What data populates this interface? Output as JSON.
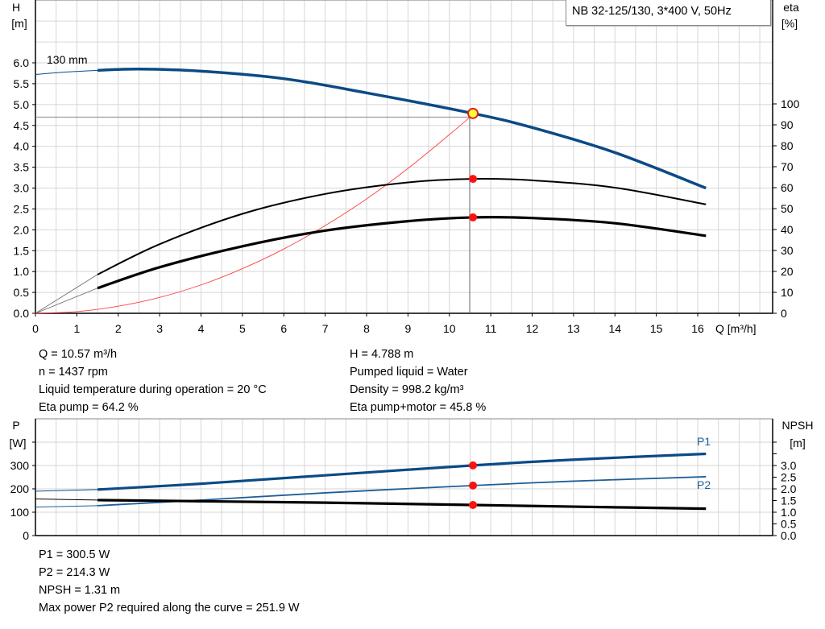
{
  "chart_data": [
    {
      "type": "line",
      "title": "NB 32-125/130, 3*400 V, 50Hz",
      "xlabel": "Q [m³/h]",
      "x_ticks": [
        "0",
        "1",
        "2",
        "3",
        "4",
        "5",
        "6",
        "7",
        "8",
        "9",
        "10",
        "11",
        "12",
        "13",
        "14",
        "15",
        "16"
      ],
      "y_left": {
        "label": "H",
        "unit": "[m]",
        "ticks": [
          "0.0",
          "0.5",
          "1.0",
          "1.5",
          "2.0",
          "2.5",
          "3.0",
          "3.5",
          "4.0",
          "4.5",
          "5.0",
          "5.5",
          "6.0"
        ],
        "range": [
          0,
          7.5
        ]
      },
      "y_right": {
        "label": "eta",
        "unit": "[%]",
        "ticks": [
          "0",
          "10",
          "20",
          "30",
          "40",
          "50",
          "60",
          "70",
          "80",
          "90",
          "100"
        ],
        "range": [
          0,
          150
        ]
      },
      "xlim": [
        0,
        17.8
      ],
      "grid": true,
      "min_flow_q": 1.5,
      "operating_point": {
        "q": 10.57,
        "h": 4.788,
        "eta_pump": 64.2,
        "eta_total": 45.8
      },
      "reference_line_h": 4.7,
      "series": [
        {
          "name": "130 mm",
          "axis": "left",
          "color": "#0b4a85",
          "x": [
            0,
            0.75,
            1.5,
            2.5,
            4,
            6,
            8,
            10.57,
            12,
            14,
            16.2
          ],
          "y": [
            5.72,
            5.78,
            5.82,
            5.85,
            5.8,
            5.62,
            5.28,
            4.788,
            4.45,
            3.85,
            3.0
          ]
        },
        {
          "axis": "right",
          "color": "#000000",
          "x": [
            1.5,
            3,
            5,
            7,
            9,
            10.57,
            12,
            14,
            16.2
          ],
          "y": [
            18.5,
            33,
            47.5,
            57,
            62.5,
            64.2,
            63.5,
            60,
            52
          ]
        },
        {
          "axis": "right",
          "color": "#000000",
          "x": [
            1.5,
            3,
            5,
            7,
            9,
            10.57,
            12,
            14,
            16.2
          ],
          "y": [
            12,
            22,
            32,
            39.5,
            44,
            45.8,
            45.5,
            43,
            37
          ]
        },
        {
          "axis": "left",
          "color": "#ff4040",
          "x": [
            0,
            1,
            2,
            3,
            4,
            5,
            6,
            7,
            8,
            9,
            10,
            10.5
          ],
          "y": [
            0,
            0.04,
            0.17,
            0.38,
            0.68,
            1.07,
            1.54,
            2.1,
            2.74,
            3.47,
            4.28,
            4.7
          ]
        }
      ]
    },
    {
      "type": "line",
      "x_ticks_shared": true,
      "y_left": {
        "label": "P",
        "unit": "[W]",
        "ticks": [
          "0",
          "100",
          "200",
          "300"
        ],
        "range": [
          0,
          500
        ]
      },
      "y_right": {
        "label": "NPSH",
        "unit": "[m]",
        "ticks": [
          "0.0",
          "0.5",
          "1.0",
          "1.5",
          "2.0",
          "2.5",
          "3.0"
        ],
        "range": [
          0,
          5
        ]
      },
      "grid": true,
      "operating_point": {
        "q": 10.57,
        "p1": 300.5,
        "p2": 214.3,
        "npsh": 1.31
      },
      "series": [
        {
          "name": "P1",
          "axis": "left",
          "color": "#0b4a85",
          "x": [
            0,
            1.5,
            4,
            7,
            10.57,
            13,
            16.2
          ],
          "y": [
            190,
            197,
            222,
            258,
            300.5,
            325,
            350
          ]
        },
        {
          "name": "P2",
          "axis": "left",
          "color": "#1f5d99",
          "x": [
            0,
            1.5,
            4,
            7,
            10.57,
            13,
            16.2
          ],
          "y": [
            122,
            128,
            152,
            183,
            214.3,
            233,
            251.9
          ]
        },
        {
          "axis": "right",
          "color": "#000000",
          "x": [
            0,
            1.5,
            4,
            7,
            10.57,
            13,
            16.2
          ],
          "y": [
            1.57,
            1.52,
            1.47,
            1.41,
            1.31,
            1.24,
            1.15
          ]
        }
      ]
    }
  ],
  "info_top": {
    "left": [
      "Q = 10.57 m³/h",
      "n = 1437 rpm",
      "Liquid temperature during operation = 20 °C",
      "Eta pump = 64.2 %"
    ],
    "right": [
      "H = 4.788 m",
      "Pumped liquid = Water",
      "Density = 998.2 kg/m³",
      "Eta pump+motor = 45.8 %"
    ]
  },
  "info_bottom": [
    "P1 = 300.5 W",
    "P2 = 214.3 W",
    "NPSH = 1.31 m",
    "Max power P2 required along the curve = 251.9 W"
  ]
}
